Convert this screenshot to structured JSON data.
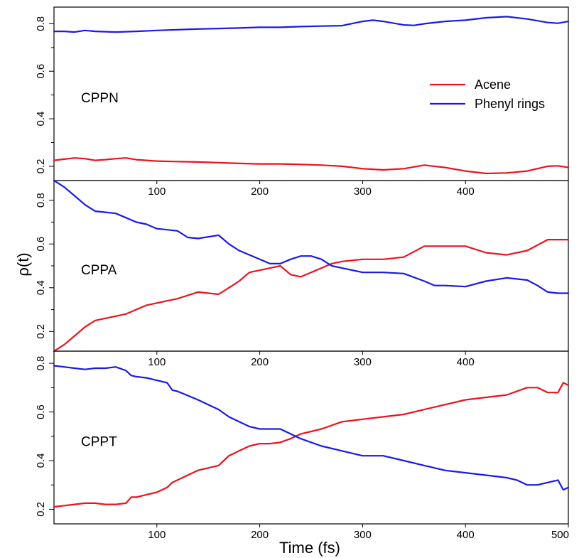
{
  "chart_data": {
    "type": "line",
    "xlabel": "Time (fs)",
    "ylabel": "ρ(t)",
    "xlim": [
      0,
      500
    ],
    "legend": {
      "placement": "top-right of first panel",
      "entries": [
        {
          "name": "Acene",
          "color": "#e8141c"
        },
        {
          "name": "Phenyl rings",
          "color": "#1a1ae6"
        }
      ]
    },
    "panels": [
      {
        "label": "CPPN",
        "ylim": [
          0.14,
          0.87
        ],
        "yticks": [
          0.2,
          0.4,
          0.6,
          0.8
        ],
        "xticks": [
          100,
          200,
          300,
          400
        ],
        "series": [
          {
            "name": "Acene",
            "color": "#e8141c",
            "x": [
              0,
              10,
              20,
              30,
              40,
              50,
              60,
              70,
              80,
              90,
              100,
              120,
              140,
              160,
              180,
              200,
              220,
              240,
              260,
              280,
              300,
              320,
              340,
              360,
              380,
              400,
              420,
              440,
              460,
              480,
              490,
              500
            ],
            "y": [
              0.225,
              0.23,
              0.235,
              0.232,
              0.225,
              0.228,
              0.232,
              0.235,
              0.228,
              0.225,
              0.222,
              0.22,
              0.218,
              0.215,
              0.212,
              0.21,
              0.21,
              0.208,
              0.205,
              0.2,
              0.19,
              0.185,
              0.19,
              0.205,
              0.195,
              0.18,
              0.17,
              0.172,
              0.18,
              0.2,
              0.202,
              0.195
            ]
          },
          {
            "name": "Phenyl rings",
            "color": "#1a1ae6",
            "x": [
              0,
              10,
              20,
              30,
              40,
              60,
              80,
              100,
              120,
              140,
              160,
              180,
              200,
              220,
              240,
              260,
              280,
              300,
              310,
              320,
              340,
              350,
              360,
              380,
              400,
              420,
              440,
              460,
              480,
              490,
              500
            ],
            "y": [
              0.768,
              0.768,
              0.765,
              0.772,
              0.768,
              0.765,
              0.768,
              0.772,
              0.775,
              0.778,
              0.78,
              0.782,
              0.785,
              0.785,
              0.788,
              0.79,
              0.792,
              0.81,
              0.815,
              0.81,
              0.795,
              0.793,
              0.8,
              0.81,
              0.815,
              0.825,
              0.83,
              0.82,
              0.805,
              0.802,
              0.81
            ]
          }
        ]
      },
      {
        "label": "CPPA",
        "ylim": [
          0.11,
          0.89
        ],
        "yticks": [
          0.2,
          0.4,
          0.6,
          0.8
        ],
        "xticks": [
          100,
          200,
          300,
          400
        ],
        "series": [
          {
            "name": "Acene",
            "color": "#e8141c",
            "x": [
              0,
              10,
              20,
              30,
              40,
              50,
              60,
              70,
              80,
              90,
              100,
              110,
              120,
              140,
              160,
              170,
              180,
              190,
              200,
              210,
              220,
              230,
              240,
              250,
              260,
              270,
              280,
              300,
              320,
              340,
              360,
              380,
              400,
              420,
              440,
              460,
              480,
              500
            ],
            "y": [
              0.11,
              0.14,
              0.18,
              0.22,
              0.25,
              0.26,
              0.27,
              0.28,
              0.3,
              0.32,
              0.33,
              0.34,
              0.35,
              0.38,
              0.37,
              0.4,
              0.43,
              0.47,
              0.48,
              0.49,
              0.5,
              0.46,
              0.45,
              0.47,
              0.49,
              0.51,
              0.52,
              0.53,
              0.53,
              0.54,
              0.59,
              0.59,
              0.59,
              0.56,
              0.55,
              0.57,
              0.62,
              0.62
            ]
          },
          {
            "name": "Phenyl rings",
            "color": "#1a1ae6",
            "x": [
              0,
              10,
              20,
              30,
              40,
              50,
              60,
              70,
              80,
              90,
              100,
              110,
              120,
              130,
              140,
              160,
              170,
              180,
              190,
              200,
              210,
              220,
              230,
              240,
              250,
              260,
              270,
              280,
              300,
              320,
              340,
              360,
              370,
              380,
              400,
              420,
              440,
              460,
              470,
              480,
              490,
              500
            ],
            "y": [
              0.89,
              0.86,
              0.82,
              0.78,
              0.75,
              0.745,
              0.74,
              0.72,
              0.7,
              0.69,
              0.67,
              0.665,
              0.66,
              0.63,
              0.625,
              0.64,
              0.6,
              0.57,
              0.55,
              0.53,
              0.51,
              0.51,
              0.53,
              0.545,
              0.545,
              0.53,
              0.5,
              0.49,
              0.47,
              0.47,
              0.465,
              0.43,
              0.41,
              0.41,
              0.405,
              0.43,
              0.445,
              0.435,
              0.41,
              0.38,
              0.375,
              0.375
            ]
          }
        ]
      },
      {
        "label": "CPPT",
        "ylim": [
          0.14,
          0.85
        ],
        "yticks": [
          0.2,
          0.4,
          0.6,
          0.8
        ],
        "xticks": [
          100,
          200,
          300,
          400,
          500
        ],
        "series": [
          {
            "name": "Acene",
            "color": "#e8141c",
            "x": [
              0,
              10,
              20,
              30,
              40,
              50,
              60,
              70,
              75,
              80,
              90,
              100,
              110,
              115,
              120,
              130,
              140,
              160,
              170,
              180,
              190,
              200,
              210,
              220,
              230,
              240,
              260,
              280,
              300,
              320,
              340,
              360,
              380,
              400,
              420,
              440,
              460,
              470,
              480,
              490,
              495,
              500
            ],
            "y": [
              0.21,
              0.215,
              0.22,
              0.225,
              0.225,
              0.22,
              0.22,
              0.225,
              0.25,
              0.25,
              0.26,
              0.27,
              0.29,
              0.31,
              0.32,
              0.34,
              0.36,
              0.38,
              0.42,
              0.44,
              0.46,
              0.47,
              0.47,
              0.475,
              0.49,
              0.51,
              0.53,
              0.56,
              0.57,
              0.58,
              0.59,
              0.61,
              0.63,
              0.65,
              0.66,
              0.67,
              0.7,
              0.7,
              0.68,
              0.68,
              0.72,
              0.71
            ]
          },
          {
            "name": "Phenyl rings",
            "color": "#1a1ae6",
            "x": [
              0,
              10,
              20,
              30,
              40,
              50,
              60,
              70,
              75,
              80,
              90,
              100,
              110,
              115,
              120,
              140,
              160,
              170,
              180,
              190,
              200,
              210,
              220,
              230,
              240,
              260,
              280,
              300,
              320,
              340,
              360,
              380,
              400,
              420,
              440,
              450,
              460,
              470,
              480,
              490,
              495,
              500
            ],
            "y": [
              0.79,
              0.785,
              0.78,
              0.775,
              0.78,
              0.78,
              0.785,
              0.77,
              0.75,
              0.745,
              0.74,
              0.73,
              0.72,
              0.69,
              0.685,
              0.65,
              0.61,
              0.58,
              0.56,
              0.54,
              0.53,
              0.53,
              0.53,
              0.51,
              0.49,
              0.46,
              0.44,
              0.42,
              0.42,
              0.4,
              0.38,
              0.36,
              0.35,
              0.34,
              0.33,
              0.32,
              0.3,
              0.3,
              0.31,
              0.32,
              0.28,
              0.29
            ]
          }
        ]
      }
    ]
  }
}
